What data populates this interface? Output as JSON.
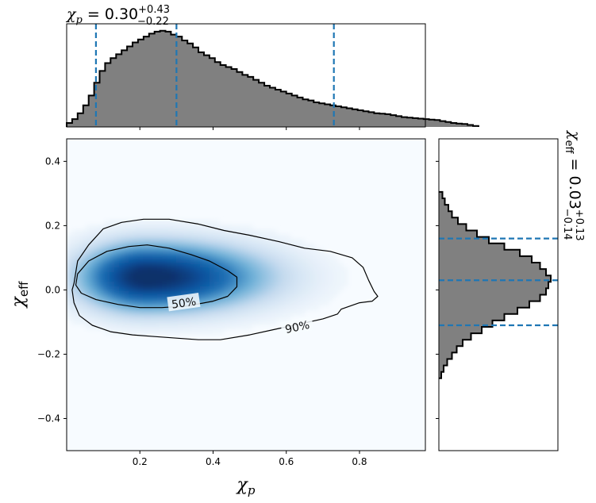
{
  "chart_data": [
    {
      "type": "heatmap",
      "panel": "joint",
      "xlabel": "χp",
      "ylabel": "χeff",
      "xlim": [
        0.0,
        0.98
      ],
      "ylim": [
        -0.5,
        0.47
      ],
      "xticks": [
        "0.2",
        "0.4",
        "0.6",
        "0.8"
      ],
      "xtick_values": [
        0.2,
        0.4,
        0.6,
        0.8
      ],
      "yticks": [
        "0.4",
        "0.2",
        "0.0",
        "−0.2",
        "−0.4"
      ],
      "ytick_values": [
        0.4,
        0.2,
        0.0,
        -0.2,
        -0.4
      ],
      "colormap": "Blues",
      "density_peak": {
        "x": 0.22,
        "y": 0.04
      },
      "contours": [
        {
          "label": "50%",
          "points": [
            [
              0.03,
              0.05
            ],
            [
              0.06,
              0.09
            ],
            [
              0.11,
              0.12
            ],
            [
              0.17,
              0.135
            ],
            [
              0.22,
              0.14
            ],
            [
              0.28,
              0.13
            ],
            [
              0.34,
              0.11
            ],
            [
              0.39,
              0.09
            ],
            [
              0.44,
              0.06
            ],
            [
              0.465,
              0.04
            ],
            [
              0.465,
              0.01
            ],
            [
              0.44,
              -0.02
            ],
            [
              0.4,
              -0.035
            ],
            [
              0.33,
              -0.05
            ],
            [
              0.26,
              -0.055
            ],
            [
              0.2,
              -0.055
            ],
            [
              0.14,
              -0.045
            ],
            [
              0.08,
              -0.03
            ],
            [
              0.04,
              -0.01
            ],
            [
              0.025,
              0.015
            ],
            [
              0.03,
              0.05
            ]
          ]
        },
        {
          "label": "90%",
          "points": [
            [
              0.02,
              0.02
            ],
            [
              0.03,
              0.09
            ],
            [
              0.06,
              0.14
            ],
            [
              0.1,
              0.19
            ],
            [
              0.15,
              0.21
            ],
            [
              0.21,
              0.22
            ],
            [
              0.28,
              0.22
            ],
            [
              0.36,
              0.205
            ],
            [
              0.43,
              0.185
            ],
            [
              0.5,
              0.17
            ],
            [
              0.58,
              0.15
            ],
            [
              0.65,
              0.13
            ],
            [
              0.72,
              0.12
            ],
            [
              0.78,
              0.1
            ],
            [
              0.81,
              0.07
            ],
            [
              0.825,
              0.03
            ],
            [
              0.84,
              -0.005
            ],
            [
              0.85,
              -0.02
            ],
            [
              0.835,
              -0.035
            ],
            [
              0.8,
              -0.04
            ],
            [
              0.75,
              -0.06
            ],
            [
              0.74,
              -0.075
            ],
            [
              0.7,
              -0.09
            ],
            [
              0.64,
              -0.105
            ],
            [
              0.58,
              -0.12
            ],
            [
              0.5,
              -0.14
            ],
            [
              0.42,
              -0.155
            ],
            [
              0.36,
              -0.155
            ],
            [
              0.3,
              -0.15
            ],
            [
              0.24,
              -0.145
            ],
            [
              0.18,
              -0.14
            ],
            [
              0.12,
              -0.13
            ],
            [
              0.07,
              -0.11
            ],
            [
              0.035,
              -0.08
            ],
            [
              0.02,
              -0.04
            ],
            [
              0.015,
              0.0
            ],
            [
              0.02,
              0.02
            ]
          ]
        }
      ]
    },
    {
      "type": "bar",
      "panel": "top-marginal",
      "title": "χp = 0.30+0.43−0.22",
      "title_parts": {
        "symbol": "χ",
        "sub": "p",
        "eq": " = 0.30",
        "up": "+0.43",
        "down": "−0.22"
      },
      "median": 0.3,
      "quantiles": [
        0.08,
        0.3,
        0.73
      ],
      "bin_edges_start": 0.0,
      "bin_width": 0.015,
      "values": [
        0.04,
        0.08,
        0.14,
        0.22,
        0.32,
        0.45,
        0.57,
        0.65,
        0.7,
        0.74,
        0.78,
        0.82,
        0.86,
        0.89,
        0.92,
        0.95,
        0.97,
        0.98,
        0.97,
        0.94,
        0.92,
        0.88,
        0.85,
        0.81,
        0.76,
        0.73,
        0.7,
        0.66,
        0.63,
        0.61,
        0.59,
        0.56,
        0.53,
        0.51,
        0.48,
        0.45,
        0.42,
        0.4,
        0.38,
        0.36,
        0.34,
        0.32,
        0.3,
        0.28,
        0.27,
        0.25,
        0.24,
        0.23,
        0.22,
        0.21,
        0.2,
        0.19,
        0.18,
        0.17,
        0.16,
        0.15,
        0.14,
        0.135,
        0.13,
        0.12,
        0.11,
        0.1,
        0.095,
        0.09,
        0.085,
        0.08,
        0.075,
        0.07,
        0.06,
        0.05,
        0.04,
        0.035,
        0.03,
        0.02,
        0.01
      ],
      "ylim": [
        0,
        1.05
      ]
    },
    {
      "type": "bar",
      "panel": "right-marginal",
      "orientation": "horizontal",
      "title": "χeff = 0.03+0.13−0.14",
      "title_parts": {
        "symbol": "χ",
        "sub": "eff",
        "eq": " = 0.03",
        "up": "+0.13",
        "down": "−0.14"
      },
      "median": 0.03,
      "quantiles": [
        -0.11,
        0.03,
        0.16
      ],
      "bin_edges_start": -0.275,
      "bin_width": 0.02,
      "values": [
        0.02,
        0.04,
        0.07,
        0.11,
        0.15,
        0.2,
        0.27,
        0.36,
        0.45,
        0.55,
        0.66,
        0.76,
        0.85,
        0.9,
        0.92,
        0.94,
        0.9,
        0.85,
        0.78,
        0.68,
        0.55,
        0.42,
        0.32,
        0.23,
        0.16,
        0.11,
        0.08,
        0.05,
        0.03
      ],
      "xlim": [
        0,
        1.0
      ]
    }
  ]
}
